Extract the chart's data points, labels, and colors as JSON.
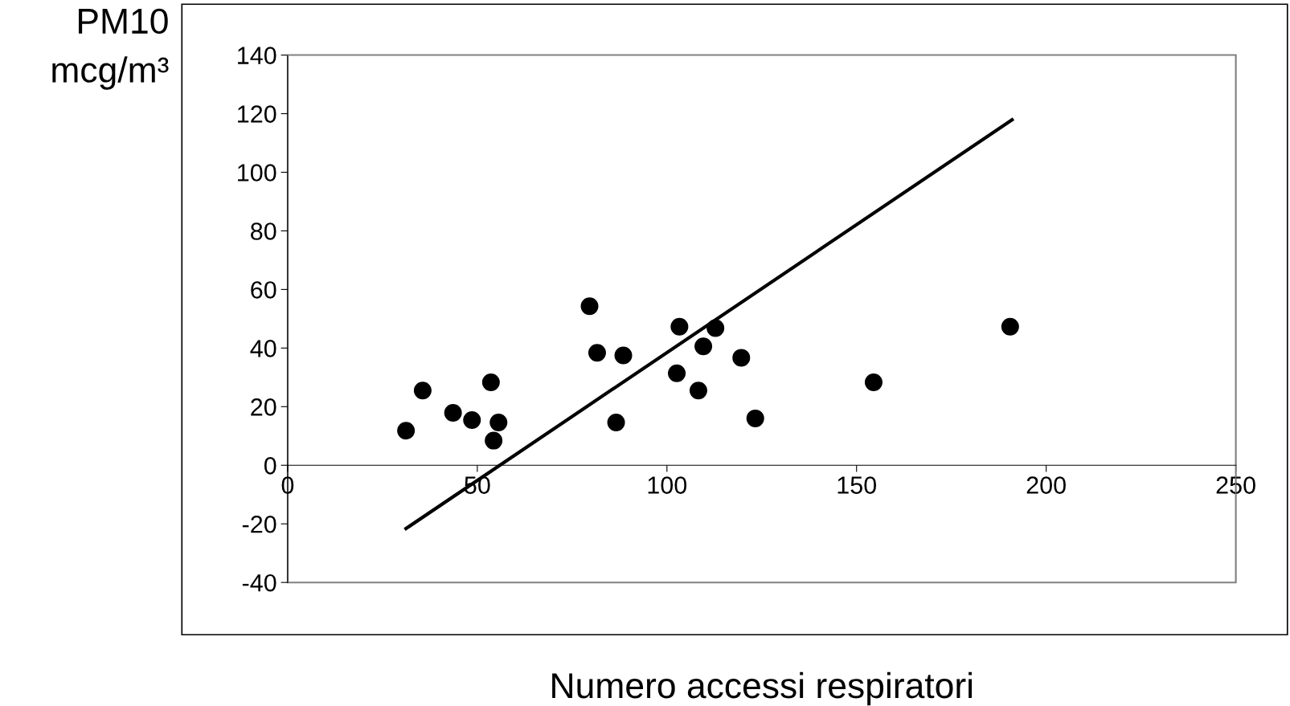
{
  "chart_data": {
    "type": "scatter",
    "xlabel": "Numero accessi respiratori",
    "ylabel": "PM10\nmcg/m³",
    "xlim": [
      0,
      250
    ],
    "xticks": [
      0,
      50,
      100,
      150,
      200,
      250
    ],
    "ylim": [
      -40,
      140
    ],
    "yticks": [
      -40,
      -20,
      0,
      20,
      40,
      60,
      80,
      100,
      120,
      140
    ],
    "grid": false,
    "legend": false,
    "marker": "circle",
    "series": [
      {
        "color": "#000000",
        "x": [
          31.2,
          35.6,
          43.6,
          48.6,
          53.6,
          54.3,
          55.6,
          79.6,
          81.6,
          86.6,
          88.5,
          102.6,
          103.3,
          108.3,
          109.6,
          112.8,
          119.6,
          123.3,
          154.5,
          190.5
        ],
        "values": [
          11.8,
          25.5,
          17.9,
          15.4,
          28.3,
          8.4,
          14.6,
          54.3,
          38.4,
          14.6,
          37.5,
          31.4,
          47.3,
          25.5,
          40.6,
          46.8,
          36.7,
          16.0,
          28.3,
          47.3
        ]
      },
      {
        "type": "line",
        "color": "#000000",
        "x": [
          31.2,
          191
        ],
        "values": [
          -21.6,
          117.9
        ],
        "marker": "none",
        "line_style": "solid"
      }
    ]
  }
}
